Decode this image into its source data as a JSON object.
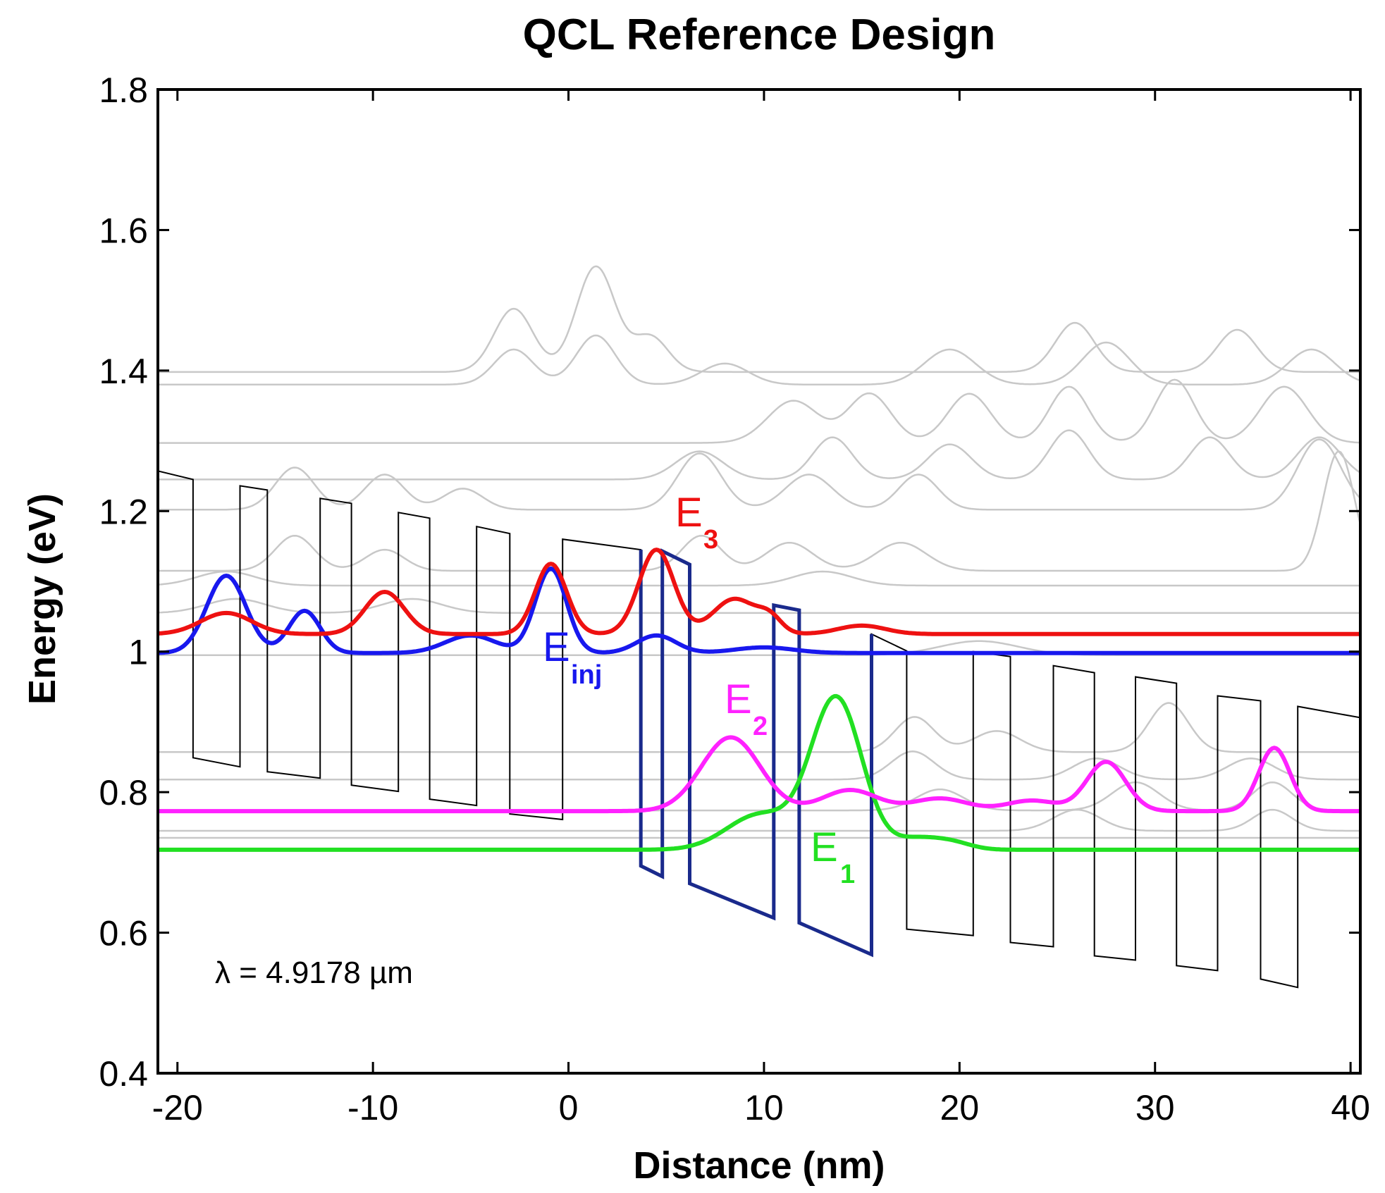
{
  "chart_data": {
    "type": "line",
    "title": "QCL Reference Design",
    "xlabel": "Distance (nm)",
    "ylabel": "Energy (eV)",
    "xlim": [
      -21,
      40.5
    ],
    "ylim": [
      0.4,
      1.8
    ],
    "xticks": [
      -20,
      -10,
      0,
      10,
      20,
      30,
      40
    ],
    "xtick_labels": [
      "-20",
      "-10",
      "0",
      "10",
      "20",
      "30",
      "40"
    ],
    "yticks": [
      0.4,
      0.6,
      0.8,
      1.0,
      1.2,
      1.4,
      1.6,
      1.8
    ],
    "ytick_labels": [
      "0.4",
      "0.6",
      "0.8",
      "1",
      "1.2",
      "1.4",
      "1.6",
      "1.8"
    ],
    "grid": false,
    "annotation": "λ = 4.9178 µm",
    "colors": {
      "band": "#000000",
      "active_band": "#1a2a8c",
      "background_states": "#c8c8c8",
      "E3": "#ee1111",
      "Einj": "#1818ee",
      "E2": "#ff22ff",
      "E1": "#22e022"
    },
    "state_labels": [
      {
        "main": "E",
        "sub": "3",
        "color": "#ee1111"
      },
      {
        "main": "E",
        "sub": "inj",
        "color": "#1818ee"
      },
      {
        "main": "E",
        "sub": "2",
        "color": "#ff22ff"
      },
      {
        "main": "E",
        "sub": "1",
        "color": "#22e022"
      }
    ],
    "band_profile": {
      "name": "conduction band edge",
      "x": [
        -21,
        -19.2,
        -19.2,
        -16.8,
        -16.8,
        -15.4,
        -15.4,
        -12.7,
        -12.7,
        -11.1,
        -11.1,
        -8.7,
        -8.7,
        -7.1,
        -7.1,
        -4.7,
        -4.7,
        -3.0,
        -3.0,
        -0.3,
        -0.3,
        3.7,
        3.7,
        4.8,
        4.8,
        6.2,
        6.2,
        10.5,
        10.5,
        11.8,
        11.8,
        15.5,
        15.5,
        17.3,
        17.3,
        20.7,
        20.7,
        22.6,
        22.6,
        24.8,
        24.8,
        26.9,
        26.9,
        29.0,
        29.0,
        31.1,
        31.1,
        33.2,
        33.2,
        35.4,
        35.4,
        37.3,
        37.3,
        40.5
      ],
      "y": [
        1.257,
        1.245,
        0.849,
        0.836,
        1.236,
        1.23,
        0.829,
        0.82,
        1.218,
        1.211,
        0.81,
        0.801,
        1.198,
        1.19,
        0.79,
        0.781,
        1.178,
        1.168,
        0.769,
        0.761,
        1.16,
        1.145,
        0.695,
        0.68,
        1.143,
        1.124,
        0.67,
        0.621,
        1.066,
        1.059,
        0.614,
        0.569,
        1.025,
        1.001,
        0.605,
        0.596,
        1.0,
        0.993,
        0.586,
        0.58,
        0.98,
        0.97,
        0.567,
        0.561,
        0.964,
        0.955,
        0.553,
        0.546,
        0.937,
        0.93,
        0.534,
        0.522,
        0.922,
        0.906
      ]
    },
    "background_states": [
      {
        "level": 1.398,
        "bumps": [
          [
            -2.8,
            0.09,
            1.0
          ],
          [
            1.4,
            0.15,
            1.0
          ],
          [
            4.2,
            0.05,
            0.9
          ],
          [
            25.9,
            0.07,
            1.0
          ],
          [
            34.2,
            0.06,
            1.0
          ]
        ]
      },
      {
        "level": 1.38,
        "bumps": [
          [
            -2.8,
            0.05,
            1.0
          ],
          [
            1.4,
            0.07,
            1.0
          ],
          [
            8.0,
            0.03,
            1.2
          ],
          [
            19.5,
            0.05,
            1.3
          ],
          [
            27.5,
            0.06,
            1.2
          ],
          [
            38.0,
            0.05,
            1.2
          ]
        ]
      },
      {
        "level": 1.297,
        "bumps": [
          [
            11.5,
            0.06,
            1.3
          ],
          [
            15.4,
            0.07,
            1.1
          ],
          [
            20.5,
            0.07,
            1.1
          ],
          [
            25.6,
            0.08,
            1.0
          ],
          [
            31.0,
            0.09,
            1.0
          ],
          [
            36.6,
            0.08,
            1.2
          ]
        ]
      },
      {
        "level": 1.245,
        "bumps": [
          [
            6.7,
            0.04,
            1.2
          ],
          [
            13.5,
            0.06,
            1.0
          ],
          [
            19.5,
            0.05,
            1.1
          ],
          [
            25.6,
            0.07,
            1.0
          ],
          [
            32.8,
            0.06,
            1.0
          ],
          [
            38.4,
            0.06,
            1.1
          ]
        ]
      },
      {
        "level": 1.202,
        "bumps": [
          [
            -14.0,
            0.06,
            1.0
          ],
          [
            -9.4,
            0.05,
            1.0
          ],
          [
            -5.4,
            0.03,
            1.0
          ],
          [
            6.7,
            0.08,
            1.1
          ],
          [
            12.3,
            0.05,
            1.2
          ],
          [
            17.9,
            0.05,
            1.0
          ],
          [
            38.4,
            0.1,
            1.1
          ]
        ]
      },
      {
        "level": 1.115,
        "bumps": [
          [
            -14.0,
            0.05,
            1.0
          ],
          [
            -9.4,
            0.03,
            1.0
          ],
          [
            6.8,
            0.05,
            1.0
          ],
          [
            11.3,
            0.04,
            1.2
          ],
          [
            17.0,
            0.04,
            1.3
          ],
          [
            39.4,
            0.17,
            0.8
          ]
        ]
      },
      {
        "level": 1.094,
        "bumps": [
          [
            -17.5,
            0.02,
            1.5
          ],
          [
            13.0,
            0.02,
            1.5
          ]
        ]
      },
      {
        "level": 1.055,
        "bumps": [
          [
            -17.0,
            0.02,
            1.5
          ],
          [
            -8.0,
            0.02,
            1.5
          ]
        ]
      },
      {
        "level": 0.995,
        "bumps": [
          [
            21.0,
            0.02,
            2.0
          ]
        ]
      },
      {
        "level": 0.857,
        "bumps": [
          [
            17.7,
            0.05,
            1.0
          ],
          [
            21.9,
            0.03,
            1.2
          ],
          [
            30.7,
            0.07,
            1.0
          ]
        ]
      },
      {
        "level": 0.818,
        "bumps": [
          [
            17.6,
            0.04,
            1.1
          ],
          [
            27.0,
            0.03,
            1.2
          ],
          [
            34.9,
            0.03,
            1.2
          ]
        ]
      },
      {
        "level": 0.774,
        "bumps": [
          [
            19.0,
            0.03,
            1.2
          ],
          [
            29.0,
            0.04,
            1.2
          ],
          [
            36.0,
            0.04,
            1.0
          ]
        ]
      },
      {
        "level": 0.745,
        "bumps": [
          [
            26.0,
            0.03,
            1.2
          ],
          [
            36.0,
            0.03,
            1.0
          ]
        ]
      },
      {
        "level": 0.735,
        "bumps": []
      }
    ],
    "series": [
      {
        "name": "E3",
        "level": 1.025,
        "bumps": [
          [
            -17.5,
            0.03,
            1.3
          ],
          [
            -9.4,
            0.06,
            1.0
          ],
          [
            -0.9,
            0.1,
            0.8
          ],
          [
            4.5,
            0.12,
            0.9
          ],
          [
            8.5,
            0.05,
            1.1
          ],
          [
            10.3,
            0.02,
            0.6
          ],
          [
            15.0,
            0.012,
            1.2
          ]
        ]
      },
      {
        "name": "Einj",
        "level": 0.998,
        "bumps": [
          [
            -17.5,
            0.11,
            1.0
          ],
          [
            -13.5,
            0.06,
            0.8
          ],
          [
            -5.0,
            0.025,
            1.3
          ],
          [
            -0.9,
            0.12,
            0.8
          ],
          [
            4.5,
            0.025,
            1.0
          ],
          [
            10.0,
            0.008,
            1.5
          ]
        ]
      },
      {
        "name": "E2",
        "level": 0.773,
        "bumps": [
          [
            8.3,
            0.105,
            1.5
          ],
          [
            14.4,
            0.03,
            1.4
          ],
          [
            19.0,
            0.018,
            1.4
          ],
          [
            23.7,
            0.015,
            1.3
          ],
          [
            27.5,
            0.07,
            1.0
          ],
          [
            36.1,
            0.09,
            0.8
          ]
        ]
      },
      {
        "name": "E1",
        "level": 0.718,
        "bumps": [
          [
            9.8,
            0.05,
            1.7
          ],
          [
            13.7,
            0.215,
            1.3
          ],
          [
            17.8,
            0.015,
            1.1
          ],
          [
            19.6,
            0.01,
            1.0
          ]
        ]
      }
    ]
  }
}
